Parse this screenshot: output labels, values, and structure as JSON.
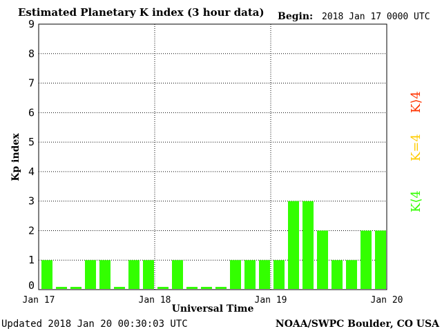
{
  "header": {
    "title": "Estimated Planetary K index (3 hour data)",
    "begin_label": "Begin:",
    "begin_value": "2018 Jan 17 0000 UTC"
  },
  "footer": {
    "updated": "Updated 2018 Jan 20 00:30:03 UTC",
    "source": "NOAA/SWPC Boulder, CO USA"
  },
  "legend": [
    {
      "label": "K⟨4",
      "color": "#33ff00"
    },
    {
      "label": "K=4",
      "color": "#ffcc00"
    },
    {
      "label": "K⟩4",
      "color": "#ff3300"
    }
  ],
  "chart_data": {
    "type": "bar",
    "title": "Estimated Planetary K index (3 hour data)",
    "xlabel": "Universal Time",
    "ylabel": "Kp index",
    "ylim": [
      0,
      9
    ],
    "yticks": [
      "0",
      "1",
      "2",
      "3",
      "4",
      "5",
      "6",
      "7",
      "8",
      "9"
    ],
    "xticks": [
      "Jan 17",
      "Jan 18",
      "Jan 19",
      "Jan 20"
    ],
    "interval_hours": 3,
    "values": [
      1,
      0,
      0,
      1,
      1,
      0,
      1,
      1,
      0,
      1,
      0,
      0,
      0,
      1,
      1,
      1,
      1,
      3,
      3,
      2,
      1,
      1,
      2,
      2
    ],
    "bar_color": "#33ff00",
    "grid": "dotted",
    "legend_position": "right"
  }
}
